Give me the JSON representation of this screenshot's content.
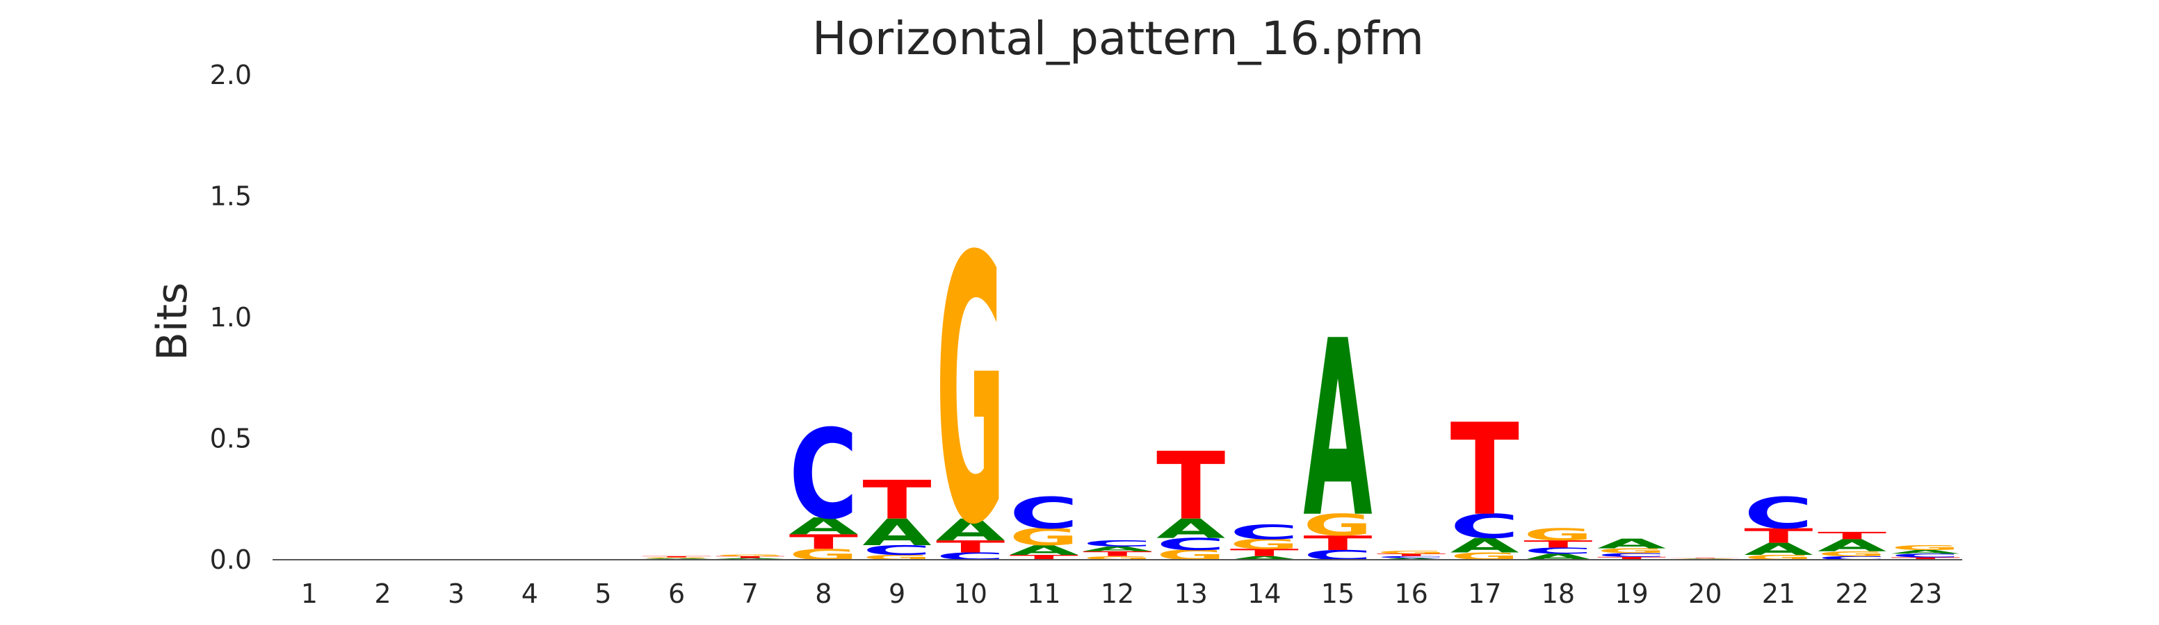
{
  "chart_data": {
    "type": "sequence-logo",
    "title": "Horizontal_pattern_16.pfm",
    "xlabel": "",
    "ylabel": "Bits",
    "ylim": [
      0,
      2.0
    ],
    "yticks": [
      "0.0",
      "0.5",
      "1.0",
      "1.5",
      "2.0"
    ],
    "categories": [
      "1",
      "2",
      "3",
      "4",
      "5",
      "6",
      "7",
      "8",
      "9",
      "10",
      "11",
      "12",
      "13",
      "14",
      "15",
      "16",
      "17",
      "18",
      "19",
      "20",
      "21",
      "22",
      "23"
    ],
    "colors": {
      "A": "#008000",
      "C": "#0000ff",
      "G": "#ffa500",
      "T": "#ff0000"
    },
    "grid": false,
    "positions": [
      {
        "pos": "1",
        "stack": []
      },
      {
        "pos": "2",
        "stack": []
      },
      {
        "pos": "3",
        "stack": []
      },
      {
        "pos": "4",
        "stack": []
      },
      {
        "pos": "5",
        "stack": []
      },
      {
        "pos": "6",
        "stack": [
          {
            "base": "C",
            "h": 0.003
          },
          {
            "base": "A",
            "h": 0.003
          },
          {
            "base": "G",
            "h": 0.004
          },
          {
            "base": "T",
            "h": 0.005
          }
        ]
      },
      {
        "pos": "7",
        "stack": [
          {
            "base": "C",
            "h": 0.003
          },
          {
            "base": "A",
            "h": 0.004
          },
          {
            "base": "T",
            "h": 0.008
          },
          {
            "base": "G",
            "h": 0.008
          }
        ]
      },
      {
        "pos": "8",
        "stack": [
          {
            "base": "G",
            "h": 0.045
          },
          {
            "base": "T",
            "h": 0.06
          },
          {
            "base": "A",
            "h": 0.07
          },
          {
            "base": "C",
            "h": 0.37
          }
        ]
      },
      {
        "pos": "9",
        "stack": [
          {
            "base": "G",
            "h": 0.02
          },
          {
            "base": "C",
            "h": 0.04
          },
          {
            "base": "A",
            "h": 0.11
          },
          {
            "base": "T",
            "h": 0.16
          }
        ]
      },
      {
        "pos": "10",
        "stack": [
          {
            "base": "C",
            "h": 0.03
          },
          {
            "base": "T",
            "h": 0.05
          },
          {
            "base": "A",
            "h": 0.09
          },
          {
            "base": "G",
            "h": 1.1
          }
        ]
      },
      {
        "pos": "11",
        "stack": [
          {
            "base": "T",
            "h": 0.02
          },
          {
            "base": "A",
            "h": 0.04
          },
          {
            "base": "G",
            "h": 0.07
          },
          {
            "base": "C",
            "h": 0.13
          }
        ]
      },
      {
        "pos": "12",
        "stack": [
          {
            "base": "G",
            "h": 0.015
          },
          {
            "base": "T",
            "h": 0.02
          },
          {
            "base": "A",
            "h": 0.02
          },
          {
            "base": "C",
            "h": 0.025
          }
        ]
      },
      {
        "pos": "13",
        "stack": [
          {
            "base": "G",
            "h": 0.04
          },
          {
            "base": "C",
            "h": 0.05
          },
          {
            "base": "A",
            "h": 0.08
          },
          {
            "base": "T",
            "h": 0.28
          }
        ]
      },
      {
        "pos": "14",
        "stack": [
          {
            "base": "A",
            "h": 0.015
          },
          {
            "base": "T",
            "h": 0.03
          },
          {
            "base": "G",
            "h": 0.04
          },
          {
            "base": "C",
            "h": 0.06
          }
        ]
      },
      {
        "pos": "15",
        "stack": [
          {
            "base": "C",
            "h": 0.04
          },
          {
            "base": "T",
            "h": 0.06
          },
          {
            "base": "G",
            "h": 0.09
          },
          {
            "base": "A",
            "h": 0.73
          }
        ]
      },
      {
        "pos": "16",
        "stack": [
          {
            "base": "A",
            "h": 0.007
          },
          {
            "base": "C",
            "h": 0.008
          },
          {
            "base": "T",
            "h": 0.01
          },
          {
            "base": "G",
            "h": 0.012
          }
        ]
      },
      {
        "pos": "17",
        "stack": [
          {
            "base": "G",
            "h": 0.03
          },
          {
            "base": "A",
            "h": 0.06
          },
          {
            "base": "C",
            "h": 0.1
          },
          {
            "base": "T",
            "h": 0.38
          }
        ]
      },
      {
        "pos": "18",
        "stack": [
          {
            "base": "A",
            "h": 0.025
          },
          {
            "base": "C",
            "h": 0.025
          },
          {
            "base": "T",
            "h": 0.03
          },
          {
            "base": "G",
            "h": 0.05
          }
        ]
      },
      {
        "pos": "19",
        "stack": [
          {
            "base": "T",
            "h": 0.012
          },
          {
            "base": "C",
            "h": 0.015
          },
          {
            "base": "G",
            "h": 0.02
          },
          {
            "base": "A",
            "h": 0.04
          }
        ]
      },
      {
        "pos": "20",
        "stack": [
          {
            "base": "C",
            "h": 0.002
          },
          {
            "base": "A",
            "h": 0.002
          },
          {
            "base": "G",
            "h": 0.002
          },
          {
            "base": "T",
            "h": 0.002
          }
        ]
      },
      {
        "pos": "21",
        "stack": [
          {
            "base": "G",
            "h": 0.02
          },
          {
            "base": "A",
            "h": 0.05
          },
          {
            "base": "T",
            "h": 0.06
          },
          {
            "base": "C",
            "h": 0.13
          }
        ]
      },
      {
        "pos": "22",
        "stack": [
          {
            "base": "C",
            "h": 0.015
          },
          {
            "base": "G",
            "h": 0.02
          },
          {
            "base": "A",
            "h": 0.05
          },
          {
            "base": "T",
            "h": 0.03
          }
        ]
      },
      {
        "pos": "23",
        "stack": [
          {
            "base": "T",
            "h": 0.01
          },
          {
            "base": "C",
            "h": 0.015
          },
          {
            "base": "A",
            "h": 0.015
          },
          {
            "base": "G",
            "h": 0.02
          }
        ]
      }
    ]
  }
}
